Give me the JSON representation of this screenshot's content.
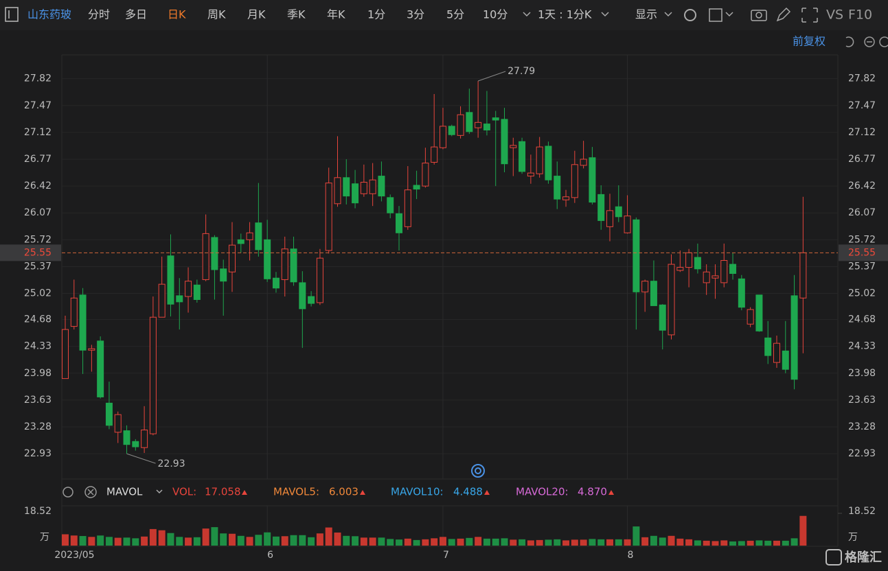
{
  "toolbar": {
    "stock": "山东药玻",
    "periods": [
      "分时",
      "多日",
      "日K",
      "周K",
      "月K",
      "季K",
      "年K",
      "1分",
      "3分",
      "5分",
      "10分"
    ],
    "active": 2,
    "interval": "1天 : 1分K",
    "display": "显示",
    "right": [
      "VS",
      "F10"
    ],
    "adjust": "前复权"
  },
  "chart_data": [
    {
      "type": "candlestick",
      "categories": [
        null,
        null,
        null,
        "2023/05",
        null,
        null,
        null,
        null,
        null,
        null,
        null,
        null,
        null,
        null,
        null,
        null,
        null,
        null,
        null,
        null,
        null,
        null,
        null,
        "6",
        null,
        null,
        null,
        null,
        null,
        null,
        null,
        null,
        null,
        null,
        null,
        null,
        null,
        null,
        null,
        null,
        null,
        null,
        null,
        "7",
        null,
        null,
        null,
        null,
        null,
        null,
        null,
        null,
        null,
        null,
        null,
        null,
        null,
        null,
        null,
        null,
        null,
        null,
        null,
        null,
        "8",
        null,
        null,
        null,
        null,
        null,
        null,
        null,
        null,
        null,
        null,
        null,
        null,
        null,
        null,
        null,
        null,
        null,
        null,
        null,
        null
      ],
      "open": [
        23.91,
        24.59,
        25.0,
        24.28,
        24.4,
        23.59,
        23.21,
        23.23,
        23.09,
        23.01,
        23.19,
        24.71,
        25.51,
        24.99,
        24.98,
        25.13,
        25.2,
        25.75,
        25.34,
        25.3,
        25.72,
        25.72,
        25.94,
        25.72,
        25.22,
        25.2,
        25.6,
        25.16,
        24.98,
        24.9,
        25.58,
        26.19,
        26.53,
        26.45,
        26.32,
        26.32,
        26.55,
        26.27,
        26.06,
        25.89,
        26.43,
        26.42,
        26.73,
        26.92,
        27.2,
        27.08,
        27.38,
        27.18,
        27.23,
        27.31,
        27.29,
        26.92,
        27.0,
        26.55,
        26.58,
        26.94,
        26.55,
        26.24,
        26.27,
        26.69,
        26.79,
        26.31,
        25.89,
        26.15,
        25.81,
        25.98,
        25.04,
        25.18,
        24.87,
        24.48,
        25.32,
        25.36,
        25.49,
        25.16,
        25.22,
        25.16,
        25.4,
        25.21,
        24.62,
        25.0,
        24.44,
        24.12,
        24.27,
        24.99,
        24.96
      ],
      "high": [
        24.73,
        25.2,
        25.09,
        24.35,
        24.46,
        23.87,
        23.48,
        23.3,
        23.12,
        23.55,
        24.98,
        25.5,
        25.79,
        25.22,
        25.36,
        25.2,
        26.05,
        25.78,
        25.46,
        25.95,
        25.8,
        25.95,
        26.46,
        25.98,
        25.3,
        25.76,
        25.76,
        25.31,
        25.05,
        25.6,
        26.66,
        27.07,
        26.77,
        26.63,
        26.7,
        26.72,
        26.74,
        26.31,
        26.16,
        26.68,
        26.62,
        26.92,
        27.62,
        27.44,
        27.22,
        27.46,
        27.69,
        27.79,
        27.66,
        27.4,
        27.44,
        27.05,
        27.05,
        26.83,
        27.06,
        27.0,
        26.74,
        26.37,
        26.88,
        27.01,
        26.93,
        26.43,
        26.32,
        26.43,
        26.3,
        26.01,
        25.2,
        25.45,
        24.88,
        25.53,
        25.58,
        25.6,
        25.67,
        25.4,
        25.4,
        25.67,
        25.55,
        25.26,
        24.84,
        25.0,
        24.66,
        24.47,
        24.66,
        25.26,
        26.28
      ],
      "low": [
        23.91,
        24.55,
        23.97,
        24.0,
        23.65,
        23.25,
        23.07,
        22.93,
        22.97,
        22.94,
        23.17,
        24.71,
        24.72,
        24.55,
        24.77,
        24.9,
        25.18,
        24.94,
        24.73,
        25.04,
        25.55,
        25.45,
        25.5,
        25.17,
        25.03,
        24.98,
        25.12,
        24.31,
        24.85,
        24.87,
        25.54,
        26.15,
        26.18,
        26.13,
        26.28,
        26.16,
        26.22,
        26.0,
        25.58,
        25.85,
        26.25,
        26.4,
        26.7,
        26.9,
        27.07,
        27.04,
        27.1,
        27.05,
        27.08,
        26.42,
        26.6,
        26.55,
        26.58,
        26.45,
        26.53,
        26.45,
        26.12,
        26.15,
        26.2,
        26.65,
        26.18,
        25.85,
        25.7,
        25.95,
        25.8,
        24.55,
        24.78,
        24.86,
        24.29,
        24.42,
        25.3,
        25.1,
        25.28,
        25.0,
        24.95,
        25.1,
        25.2,
        24.8,
        24.58,
        24.52,
        24.1,
        24.05,
        23.98,
        23.77,
        24.24
      ],
      "close": [
        24.55,
        24.96,
        24.28,
        24.3,
        23.67,
        23.3,
        23.44,
        23.05,
        23.02,
        23.24,
        24.71,
        25.14,
        24.88,
        24.91,
        25.18,
        24.94,
        25.8,
        25.33,
        25.18,
        25.65,
        25.67,
        25.81,
        25.59,
        25.21,
        25.09,
        25.6,
        25.17,
        24.82,
        24.89,
        25.48,
        26.46,
        26.53,
        26.29,
        26.2,
        26.47,
        26.5,
        26.29,
        26.07,
        25.81,
        26.37,
        26.38,
        26.72,
        26.93,
        27.2,
        27.09,
        27.35,
        27.13,
        27.25,
        27.15,
        27.28,
        26.71,
        26.95,
        26.61,
        26.59,
        26.93,
        26.5,
        26.25,
        26.28,
        26.7,
        26.77,
        26.21,
        25.97,
        26.1,
        26.02,
        26.03,
        25.04,
        25.18,
        24.86,
        24.54,
        25.4,
        25.36,
        25.55,
        25.34,
        25.3,
        25.25,
        25.45,
        25.28,
        24.84,
        24.81,
        24.53,
        24.21,
        24.37,
        24.03,
        23.9,
        25.55
      ],
      "up_color": "#e8453c",
      "down_color": "#1ea84f",
      "ylim": [
        22.6,
        28.13
      ],
      "yticks": [
        27.82,
        27.47,
        27.12,
        26.77,
        26.42,
        26.07,
        25.72,
        25.37,
        25.02,
        24.68,
        24.33,
        23.98,
        23.63,
        23.28,
        22.93
      ],
      "last_price": 25.55,
      "high_mark": 47,
      "low_mark": 7,
      "grid": true
    },
    {
      "type": "bar",
      "indicator": "MAVOL",
      "values": [
        6.5,
        5.8,
        5.5,
        5.0,
        5.8,
        5.0,
        4.5,
        4.6,
        4.2,
        5.2,
        9.5,
        8.8,
        7.2,
        5.0,
        4.6,
        4.8,
        9.8,
        10.6,
        7.0,
        6.8,
        5.6,
        5.0,
        6.2,
        7.6,
        5.2,
        5.4,
        6.0,
        6.0,
        4.8,
        7.0,
        10.4,
        7.5,
        5.6,
        5.4,
        4.6,
        4.6,
        4.6,
        3.8,
        3.5,
        4.0,
        3.2,
        3.6,
        4.2,
        5.0,
        3.8,
        4.0,
        4.4,
        5.0,
        4.0,
        4.0,
        4.2,
        3.4,
        3.6,
        3.0,
        3.2,
        3.4,
        3.6,
        3.0,
        3.4,
        3.4,
        3.8,
        3.6,
        3.6,
        3.6,
        3.6,
        11.0,
        4.8,
        5.6,
        4.6,
        5.6,
        4.0,
        3.6,
        3.0,
        2.8,
        2.6,
        3.0,
        2.4,
        2.6,
        2.8,
        3.0,
        2.8,
        2.8,
        2.8,
        4.2,
        17.058
      ],
      "ylim": [
        0,
        18.52
      ],
      "yticks": [
        18.52
      ],
      "unit": "万",
      "legend": [
        {
          "name": "VOL:",
          "value": 17.058,
          "color": "#e8453c"
        },
        {
          "name": "MAVOL5:",
          "value": 6.003,
          "color": "#f0883a"
        },
        {
          "name": "MAVOL10:",
          "value": 4.488,
          "color": "#38a6e8"
        },
        {
          "name": "MAVOL20:",
          "value": 4.87,
          "color": "#d86ad8"
        }
      ]
    }
  ],
  "watermark": "格隆汇"
}
